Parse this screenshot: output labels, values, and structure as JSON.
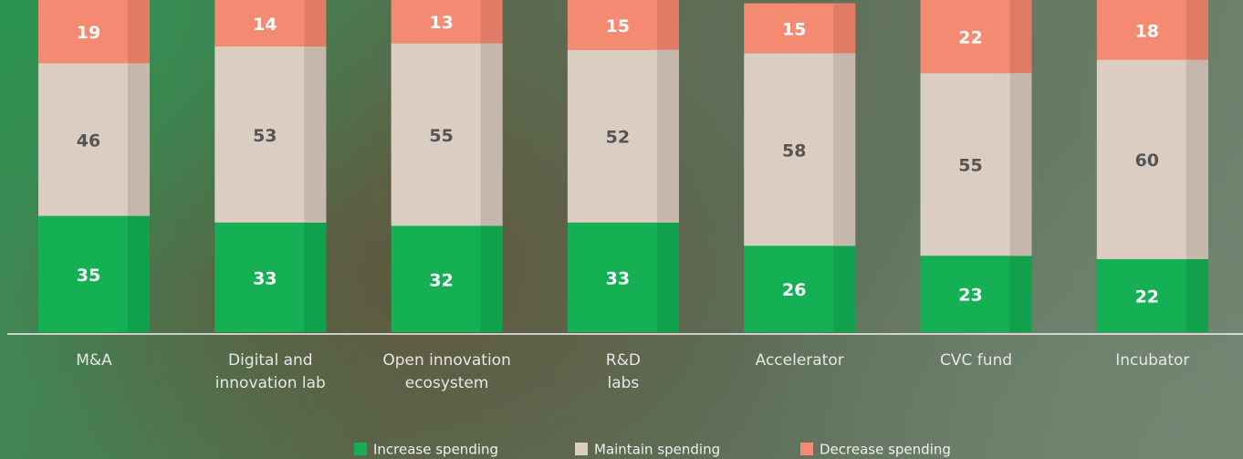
{
  "chart_data": {
    "type": "bar",
    "stacked": true,
    "categories": [
      "M&A",
      "Digital and\ninnovation lab",
      "Open innovation\necosystem",
      "R&D\nlabs",
      "Accelerator",
      "CVC fund",
      "Incubator"
    ],
    "series": [
      {
        "name": "Increase spending",
        "color": "#14b053",
        "values": [
          35,
          33,
          32,
          33,
          26,
          23,
          22
        ]
      },
      {
        "name": "Maintain spending",
        "color": "#dbcdc2",
        "values": [
          46,
          53,
          55,
          52,
          58,
          55,
          60
        ]
      },
      {
        "name": "Decrease spending",
        "color": "#f48a72",
        "values": [
          19,
          14,
          13,
          15,
          15,
          22,
          18
        ]
      }
    ],
    "ylim": [
      0,
      100
    ]
  }
}
